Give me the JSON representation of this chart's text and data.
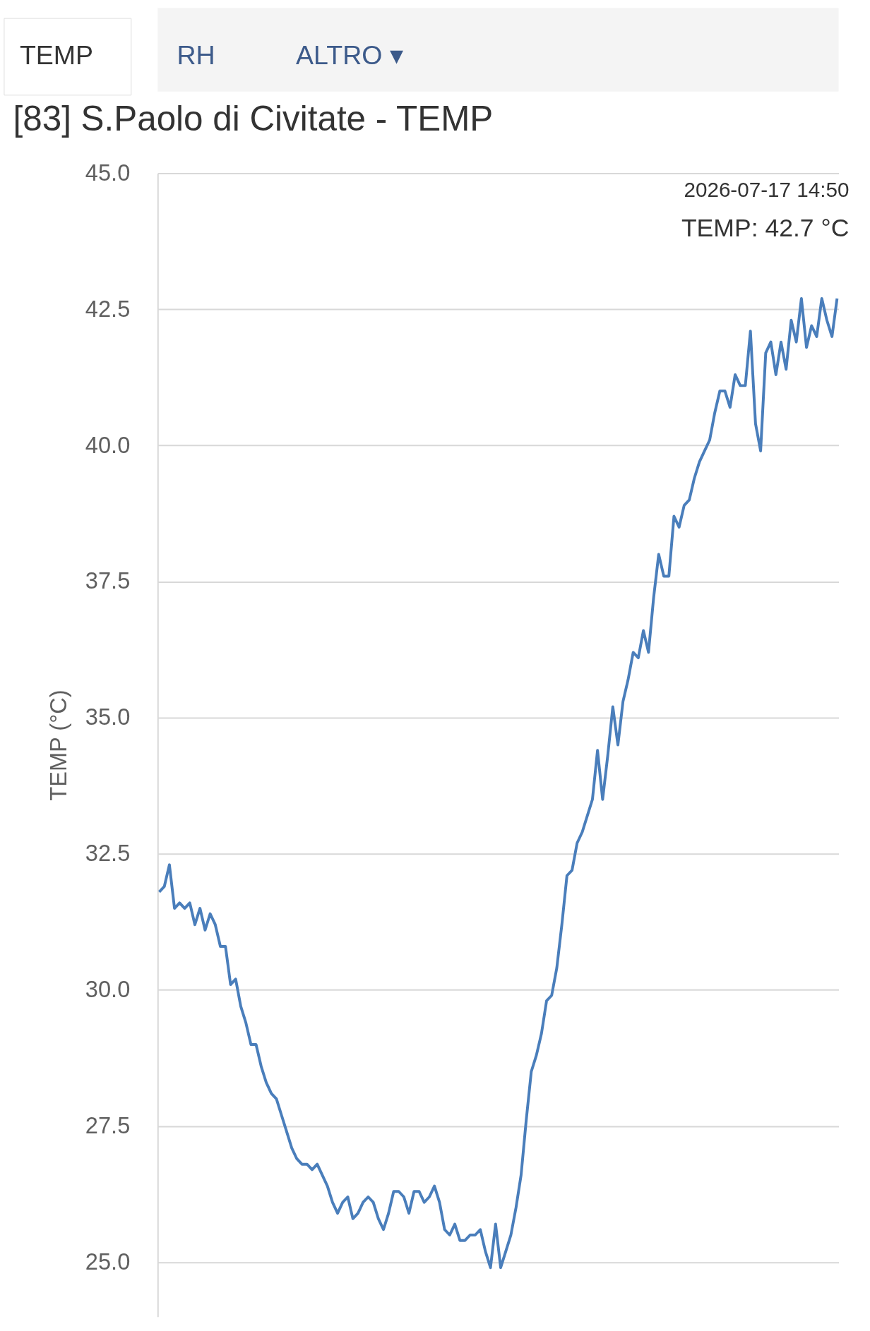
{
  "chart_data": {
    "type": "line",
    "title": "[83] S.Paolo di Civitate - TEMP",
    "ylabel": "TEMP (°C)",
    "annotations": [
      "TEMP",
      "RH",
      "ALTRO ▾",
      {
        "text": "2026-07-17 14:50"
      },
      {
        "text": "TEMP: 42.7 °C"
      }
    ],
    "categories": [
      null,
      null,
      null,
      null,
      null,
      null,
      null,
      null,
      null,
      null,
      null,
      null,
      null,
      null,
      null,
      null,
      null,
      null,
      null,
      null,
      null,
      null,
      null,
      null,
      null,
      null,
      null,
      null,
      null,
      null,
      null,
      null,
      null,
      null,
      null,
      null,
      null,
      null,
      null,
      null,
      null,
      null,
      null,
      null,
      null,
      null,
      null,
      null,
      null,
      null,
      null,
      null,
      null,
      null,
      null,
      null,
      null,
      null,
      null,
      null,
      null,
      null,
      null,
      null,
      null,
      null,
      null,
      null,
      null,
      null,
      null,
      null,
      null,
      null,
      null,
      null,
      null,
      null,
      null,
      null,
      null,
      null,
      null,
      null,
      null,
      null,
      null,
      null,
      null,
      null,
      null,
      null,
      null,
      null,
      null,
      null,
      null,
      null,
      null,
      null,
      null,
      null,
      null,
      null,
      null,
      null,
      null,
      null,
      null,
      null,
      null,
      null,
      null,
      null,
      null,
      null,
      null,
      null,
      null,
      null,
      null,
      null,
      null,
      null,
      null,
      null,
      null,
      null,
      null,
      null,
      null,
      null,
      null,
      null
    ],
    "ylim": [
      24.0,
      45.0
    ],
    "yticks": [
      {
        "value": 25,
        "label": "25.0"
      },
      {
        "value": 27.5,
        "label": "27.5"
      },
      {
        "value": 30,
        "label": "30.0"
      },
      {
        "value": 32.5,
        "label": "32.5"
      },
      {
        "value": 35,
        "label": "35.0"
      },
      {
        "value": 37.5,
        "label": "37.5"
      },
      {
        "value": 40,
        "label": "40.0"
      },
      {
        "value": 42.5,
        "label": "42.5"
      },
      {
        "value": 45,
        "label": "45.0"
      }
    ],
    "grid": "y",
    "series": [
      {
        "color": "#4a7ebb",
        "values": [
          31.8,
          31.9,
          32.3,
          31.5,
          31.6,
          31.5,
          31.6,
          31.2,
          31.5,
          31.1,
          31.4,
          31.2,
          30.8,
          30.8,
          30.1,
          30.2,
          29.7,
          29.4,
          29.0,
          29.0,
          28.6,
          28.3,
          28.1,
          28.0,
          27.7,
          27.4,
          27.1,
          26.9,
          26.8,
          26.8,
          26.7,
          26.8,
          26.6,
          26.4,
          26.1,
          25.9,
          26.1,
          26.2,
          25.8,
          25.9,
          26.1,
          26.2,
          26.1,
          25.8,
          25.6,
          25.9,
          26.3,
          26.3,
          26.2,
          25.9,
          26.3,
          26.3,
          26.1,
          26.2,
          26.4,
          26.1,
          25.6,
          25.5,
          25.7,
          25.4,
          25.4,
          25.5,
          25.5,
          25.6,
          25.2,
          24.9,
          25.7,
          24.9,
          25.2,
          25.5,
          26.0,
          26.6,
          27.6,
          28.5,
          28.8,
          29.2,
          29.8,
          29.9,
          30.4,
          31.2,
          32.1,
          32.2,
          32.7,
          32.9,
          33.2,
          33.5,
          34.4,
          33.5,
          34.3,
          35.2,
          34.5,
          35.3,
          35.7,
          36.2,
          36.1,
          36.6,
          36.2,
          37.2,
          38.0,
          37.6,
          37.6,
          38.7,
          38.5,
          38.9,
          39.0,
          39.4,
          39.7,
          39.9,
          40.1,
          40.6,
          41.0,
          41.0,
          40.7,
          41.3,
          41.1,
          41.1,
          42.1,
          40.4,
          39.9,
          41.7,
          41.9,
          41.3,
          41.9,
          41.4,
          42.3,
          41.9,
          42.7,
          41.8,
          42.2,
          42.0,
          42.7,
          42.3,
          42.0,
          42.7
        ]
      }
    ]
  }
}
